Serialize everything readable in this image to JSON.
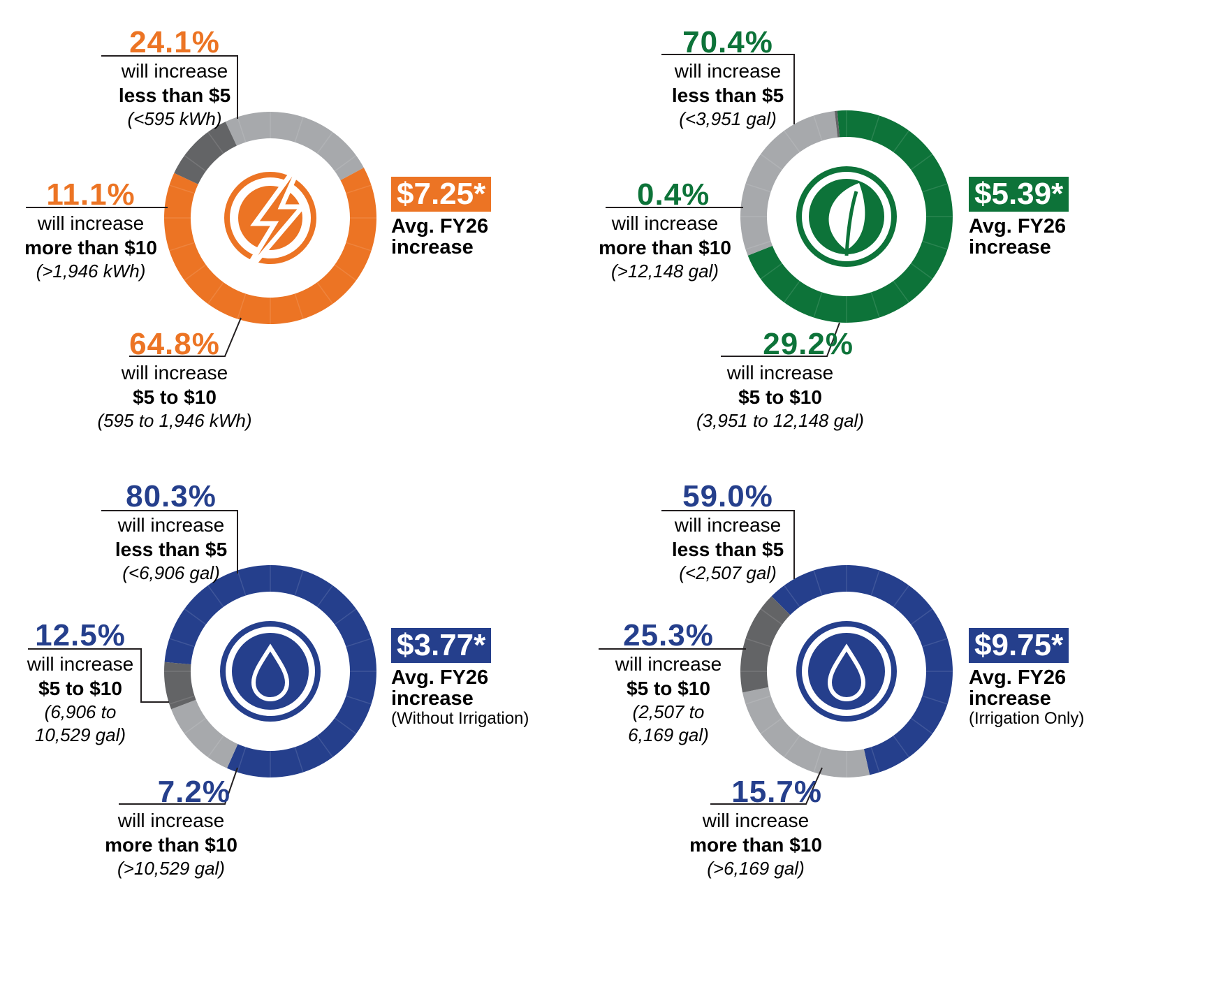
{
  "charts": [
    {
      "id": "electric",
      "color": "#ec7424",
      "icon": "lightning-bolt-icon",
      "avg": {
        "amount": "$7.25*",
        "caption_line1": "Avg. FY26",
        "caption_line2": "increase",
        "note": ""
      },
      "segments": [
        {
          "pct": "24.1%",
          "action": "will increase",
          "range": "less than $5",
          "usage": "(<595 kWh)"
        },
        {
          "pct": "64.8%",
          "action": "will increase",
          "range": "$5 to $10",
          "usage": "(595 to 1,946 kWh)"
        },
        {
          "pct": "11.1%",
          "action": "will increase",
          "range": "more than $10",
          "usage": "(>1,946 kWh)"
        }
      ]
    },
    {
      "id": "wastewater",
      "color": "#0d7339",
      "icon": "leaf-icon",
      "avg": {
        "amount": "$5.39*",
        "caption_line1": "Avg. FY26",
        "caption_line2": "increase",
        "note": ""
      },
      "segments": [
        {
          "pct": "70.4%",
          "action": "will increase",
          "range": "less than $5",
          "usage": "(<3,951 gal)"
        },
        {
          "pct": "29.2%",
          "action": "will increase",
          "range": "$5 to $10",
          "usage": "(3,951 to 12,148 gal)"
        },
        {
          "pct": "0.4%",
          "action": "will increase",
          "range": "more than $10",
          "usage": "(>12,148 gal)"
        }
      ]
    },
    {
      "id": "water",
      "color": "#253f8c",
      "icon": "water-drop-icon",
      "avg": {
        "amount": "$3.77*",
        "caption_line1": "Avg. FY26",
        "caption_line2": "increase",
        "note": "(Without Irrigation)"
      },
      "segments": [
        {
          "pct": "80.3%",
          "action": "will increase",
          "range": "less than $5",
          "usage": "(<6,906 gal)"
        },
        {
          "pct": "12.5%",
          "action": "will increase",
          "range": "$5 to $10",
          "usage": "(6,906 to",
          "usage2": "10,529 gal)"
        },
        {
          "pct": "7.2%",
          "action": "will increase",
          "range": "more than $10",
          "usage": "(>10,529 gal)"
        }
      ]
    },
    {
      "id": "irrigation",
      "color": "#253f8c",
      "icon": "water-drop-icon",
      "avg": {
        "amount": "$9.75*",
        "caption_line1": "Avg. FY26",
        "caption_line2": "increase",
        "note": "(Irrigation Only)"
      },
      "segments": [
        {
          "pct": "59.0%",
          "action": "will increase",
          "range": "less than $5",
          "usage": "(<2,507 gal)"
        },
        {
          "pct": "25.3%",
          "action": "will increase",
          "range": "$5 to $10",
          "usage": "(2,507 to",
          "usage2": "6,169 gal)"
        },
        {
          "pct": "15.7%",
          "action": "will increase",
          "range": "more than $10",
          "usage": "(>6,169 gal)"
        }
      ]
    }
  ],
  "chart_data": [
    {
      "type": "pie",
      "categories": [
        "less than $5",
        "$5 to $10",
        "more than $10"
      ],
      "values": [
        24.1,
        64.8,
        11.1
      ],
      "colors": [
        "#a7a9ac",
        "#ec7424",
        "#636466"
      ]
    },
    {
      "type": "pie",
      "categories": [
        "less than $5",
        "$5 to $10",
        "more than $10"
      ],
      "values": [
        70.4,
        29.2,
        0.4
      ],
      "colors": [
        "#0d7339",
        "#a7a9ac",
        "#636466"
      ]
    },
    {
      "type": "pie",
      "categories": [
        "less than $5",
        "$5 to $10",
        "more than $10"
      ],
      "values": [
        80.3,
        12.5,
        7.2
      ],
      "colors": [
        "#253f8c",
        "#a7a9ac",
        "#636466"
      ]
    },
    {
      "type": "pie",
      "categories": [
        "less than $5",
        "$5 to $10",
        "more than $10"
      ],
      "values": [
        59.0,
        25.3,
        15.7
      ],
      "colors": [
        "#253f8c",
        "#a7a9ac",
        "#636466"
      ]
    }
  ]
}
